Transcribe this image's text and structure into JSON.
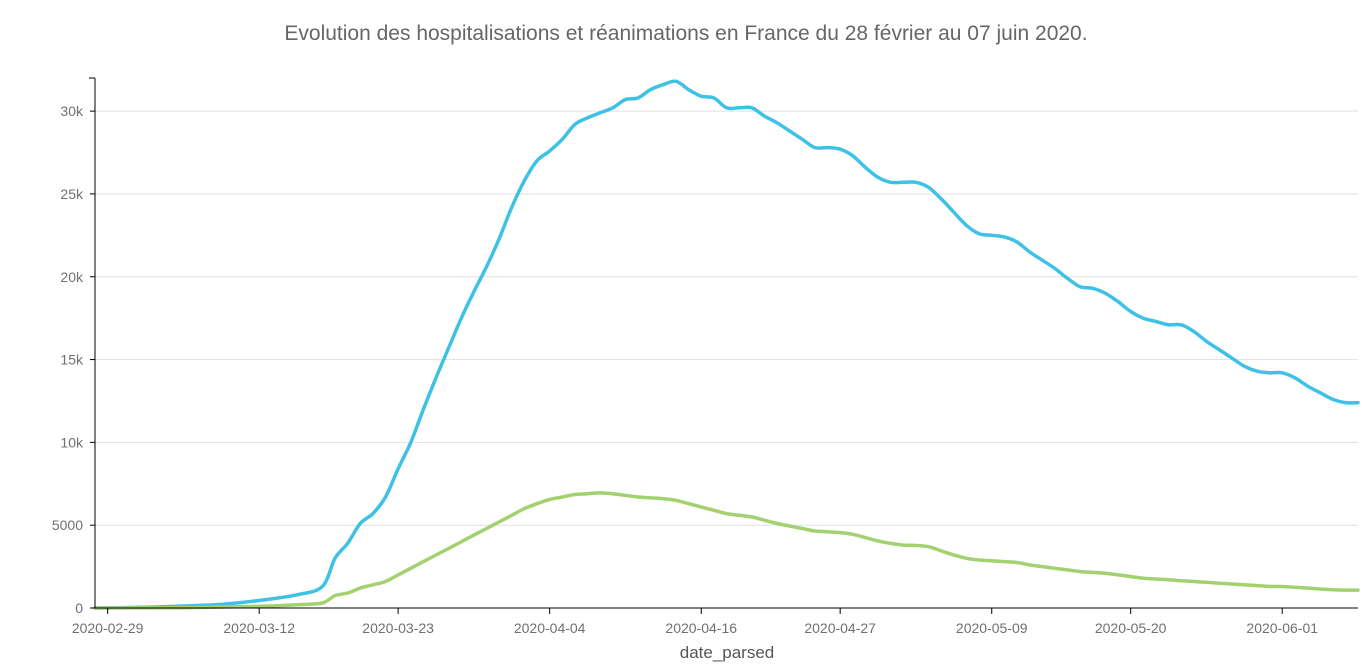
{
  "chart_data": {
    "type": "line",
    "title": "Evolution des hospitalisations et réanimations en France du 28 février au 07 juin 2020.",
    "xlabel": "date_parsed",
    "ylabel": "",
    "ylim": [
      0,
      32000
    ],
    "x_range": [
      "2020-02-28",
      "2020-06-07"
    ],
    "x_ticks": [
      "2020-02-29",
      "2020-03-12",
      "2020-03-23",
      "2020-04-04",
      "2020-04-16",
      "2020-04-27",
      "2020-05-09",
      "2020-05-20",
      "2020-06-01"
    ],
    "y_ticks": [
      {
        "value": 0,
        "label": "0"
      },
      {
        "value": 5000,
        "label": "5000"
      },
      {
        "value": 10000,
        "label": "10k"
      },
      {
        "value": 15000,
        "label": "15k"
      },
      {
        "value": 20000,
        "label": "20k"
      },
      {
        "value": 25000,
        "label": "25k"
      },
      {
        "value": 30000,
        "label": "30k"
      }
    ],
    "grid": true,
    "legend": false,
    "series": [
      {
        "color": "#3fc1e6",
        "points": [
          [
            "2020-02-28",
            0
          ],
          [
            "2020-03-03",
            50
          ],
          [
            "2020-03-06",
            120
          ],
          [
            "2020-03-09",
            220
          ],
          [
            "2020-03-12",
            450
          ],
          [
            "2020-03-15",
            800
          ],
          [
            "2020-03-17",
            1300
          ],
          [
            "2020-03-18",
            3000
          ],
          [
            "2020-03-19",
            3900
          ],
          [
            "2020-03-20",
            5100
          ],
          [
            "2020-03-21",
            5700
          ],
          [
            "2020-03-22",
            6700
          ],
          [
            "2020-03-23",
            8400
          ],
          [
            "2020-03-24",
            10000
          ],
          [
            "2020-03-25",
            12000
          ],
          [
            "2020-03-26",
            13900
          ],
          [
            "2020-03-27",
            15700
          ],
          [
            "2020-03-28",
            17500
          ],
          [
            "2020-03-29",
            19100
          ],
          [
            "2020-03-30",
            20600
          ],
          [
            "2020-03-31",
            22300
          ],
          [
            "2020-04-01",
            24200
          ],
          [
            "2020-04-02",
            25800
          ],
          [
            "2020-04-03",
            27000
          ],
          [
            "2020-04-04",
            27600
          ],
          [
            "2020-04-05",
            28300
          ],
          [
            "2020-04-06",
            29200
          ],
          [
            "2020-04-07",
            29600
          ],
          [
            "2020-04-08",
            29900
          ],
          [
            "2020-04-09",
            30200
          ],
          [
            "2020-04-10",
            30700
          ],
          [
            "2020-04-11",
            30800
          ],
          [
            "2020-04-12",
            31300
          ],
          [
            "2020-04-13",
            31600
          ],
          [
            "2020-04-14",
            31800
          ],
          [
            "2020-04-15",
            31300
          ],
          [
            "2020-04-16",
            30900
          ],
          [
            "2020-04-17",
            30800
          ],
          [
            "2020-04-18",
            30200
          ],
          [
            "2020-04-19",
            30200
          ],
          [
            "2020-04-20",
            30200
          ],
          [
            "2020-04-21",
            29700
          ],
          [
            "2020-04-22",
            29300
          ],
          [
            "2020-04-23",
            28800
          ],
          [
            "2020-04-24",
            28300
          ],
          [
            "2020-04-25",
            27800
          ],
          [
            "2020-04-26",
            27800
          ],
          [
            "2020-04-27",
            27700
          ],
          [
            "2020-04-28",
            27300
          ],
          [
            "2020-04-29",
            26600
          ],
          [
            "2020-04-30",
            26000
          ],
          [
            "2020-05-01",
            25700
          ],
          [
            "2020-05-02",
            25700
          ],
          [
            "2020-05-03",
            25700
          ],
          [
            "2020-05-04",
            25400
          ],
          [
            "2020-05-05",
            24700
          ],
          [
            "2020-05-06",
            23900
          ],
          [
            "2020-05-07",
            23100
          ],
          [
            "2020-05-08",
            22600
          ],
          [
            "2020-05-09",
            22500
          ],
          [
            "2020-05-10",
            22400
          ],
          [
            "2020-05-11",
            22100
          ],
          [
            "2020-05-12",
            21500
          ],
          [
            "2020-05-13",
            21000
          ],
          [
            "2020-05-14",
            20500
          ],
          [
            "2020-05-15",
            19900
          ],
          [
            "2020-05-16",
            19400
          ],
          [
            "2020-05-17",
            19300
          ],
          [
            "2020-05-18",
            19000
          ],
          [
            "2020-05-19",
            18500
          ],
          [
            "2020-05-20",
            17900
          ],
          [
            "2020-05-21",
            17500
          ],
          [
            "2020-05-22",
            17300
          ],
          [
            "2020-05-23",
            17100
          ],
          [
            "2020-05-24",
            17100
          ],
          [
            "2020-05-25",
            16700
          ],
          [
            "2020-05-26",
            16100
          ],
          [
            "2020-05-27",
            15600
          ],
          [
            "2020-05-28",
            15100
          ],
          [
            "2020-05-29",
            14600
          ],
          [
            "2020-05-30",
            14300
          ],
          [
            "2020-05-31",
            14200
          ],
          [
            "2020-06-01",
            14200
          ],
          [
            "2020-06-02",
            13900
          ],
          [
            "2020-06-03",
            13400
          ],
          [
            "2020-06-04",
            13000
          ],
          [
            "2020-06-05",
            12600
          ],
          [
            "2020-06-06",
            12400
          ],
          [
            "2020-06-07",
            12400
          ]
        ]
      },
      {
        "color": "#a4d16f",
        "points": [
          [
            "2020-02-28",
            0
          ],
          [
            "2020-03-06",
            20
          ],
          [
            "2020-03-12",
            100
          ],
          [
            "2020-03-15",
            200
          ],
          [
            "2020-03-17",
            300
          ],
          [
            "2020-03-18",
            750
          ],
          [
            "2020-03-19",
            900
          ],
          [
            "2020-03-20",
            1200
          ],
          [
            "2020-03-21",
            1400
          ],
          [
            "2020-03-22",
            1600
          ],
          [
            "2020-03-23",
            2000
          ],
          [
            "2020-03-24",
            2400
          ],
          [
            "2020-03-25",
            2800
          ],
          [
            "2020-03-26",
            3200
          ],
          [
            "2020-03-27",
            3600
          ],
          [
            "2020-03-28",
            4000
          ],
          [
            "2020-03-29",
            4400
          ],
          [
            "2020-03-30",
            4800
          ],
          [
            "2020-03-31",
            5200
          ],
          [
            "2020-04-01",
            5600
          ],
          [
            "2020-04-02",
            6000
          ],
          [
            "2020-04-03",
            6300
          ],
          [
            "2020-04-04",
            6550
          ],
          [
            "2020-04-05",
            6700
          ],
          [
            "2020-04-06",
            6850
          ],
          [
            "2020-04-07",
            6900
          ],
          [
            "2020-04-08",
            6950
          ],
          [
            "2020-04-09",
            6900
          ],
          [
            "2020-04-10",
            6800
          ],
          [
            "2020-04-11",
            6700
          ],
          [
            "2020-04-12",
            6650
          ],
          [
            "2020-04-13",
            6600
          ],
          [
            "2020-04-14",
            6500
          ],
          [
            "2020-04-15",
            6300
          ],
          [
            "2020-04-16",
            6100
          ],
          [
            "2020-04-17",
            5900
          ],
          [
            "2020-04-18",
            5700
          ],
          [
            "2020-04-19",
            5600
          ],
          [
            "2020-04-20",
            5500
          ],
          [
            "2020-04-21",
            5300
          ],
          [
            "2020-04-22",
            5100
          ],
          [
            "2020-04-23",
            4950
          ],
          [
            "2020-04-24",
            4800
          ],
          [
            "2020-04-25",
            4650
          ],
          [
            "2020-04-26",
            4600
          ],
          [
            "2020-04-27",
            4550
          ],
          [
            "2020-04-28",
            4450
          ],
          [
            "2020-04-29",
            4250
          ],
          [
            "2020-04-30",
            4050
          ],
          [
            "2020-05-01",
            3900
          ],
          [
            "2020-05-02",
            3800
          ],
          [
            "2020-05-03",
            3780
          ],
          [
            "2020-05-04",
            3700
          ],
          [
            "2020-05-05",
            3450
          ],
          [
            "2020-05-06",
            3200
          ],
          [
            "2020-05-07",
            3000
          ],
          [
            "2020-05-08",
            2900
          ],
          [
            "2020-05-09",
            2850
          ],
          [
            "2020-05-10",
            2800
          ],
          [
            "2020-05-11",
            2750
          ],
          [
            "2020-05-12",
            2600
          ],
          [
            "2020-05-13",
            2500
          ],
          [
            "2020-05-14",
            2400
          ],
          [
            "2020-05-15",
            2300
          ],
          [
            "2020-05-16",
            2200
          ],
          [
            "2020-05-17",
            2150
          ],
          [
            "2020-05-18",
            2100
          ],
          [
            "2020-05-19",
            2000
          ],
          [
            "2020-05-20",
            1900
          ],
          [
            "2020-05-21",
            1800
          ],
          [
            "2020-05-22",
            1750
          ],
          [
            "2020-05-23",
            1700
          ],
          [
            "2020-05-24",
            1650
          ],
          [
            "2020-05-25",
            1600
          ],
          [
            "2020-05-26",
            1550
          ],
          [
            "2020-05-27",
            1500
          ],
          [
            "2020-05-28",
            1450
          ],
          [
            "2020-05-29",
            1400
          ],
          [
            "2020-05-30",
            1350
          ],
          [
            "2020-05-31",
            1300
          ],
          [
            "2020-06-01",
            1300
          ],
          [
            "2020-06-02",
            1250
          ],
          [
            "2020-06-03",
            1200
          ],
          [
            "2020-06-04",
            1150
          ],
          [
            "2020-06-05",
            1100
          ],
          [
            "2020-06-06",
            1080
          ],
          [
            "2020-06-07",
            1080
          ]
        ]
      }
    ]
  }
}
